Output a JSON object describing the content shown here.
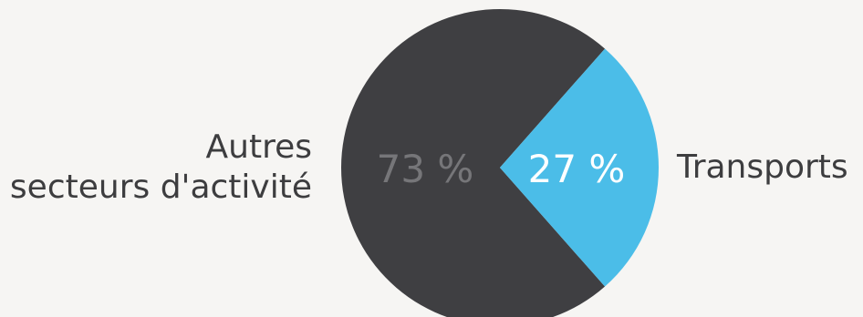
{
  "colors": {
    "background": "#f6f5f3",
    "autres": "#3f3f42",
    "transports": "#4bbde8",
    "autres_value_text": "#767679",
    "transports_value_text": "#ffffff",
    "label_text": "#3d3d3f"
  },
  "chart_data": {
    "type": "pie",
    "title": "",
    "slices": [
      {
        "label_lines": [
          "Autres",
          "secteurs d'activité"
        ],
        "value": 73,
        "value_label": "73 %"
      },
      {
        "label_lines": [
          "Transports"
        ],
        "value": 27,
        "value_label": "27 %"
      }
    ],
    "legend": "none"
  }
}
